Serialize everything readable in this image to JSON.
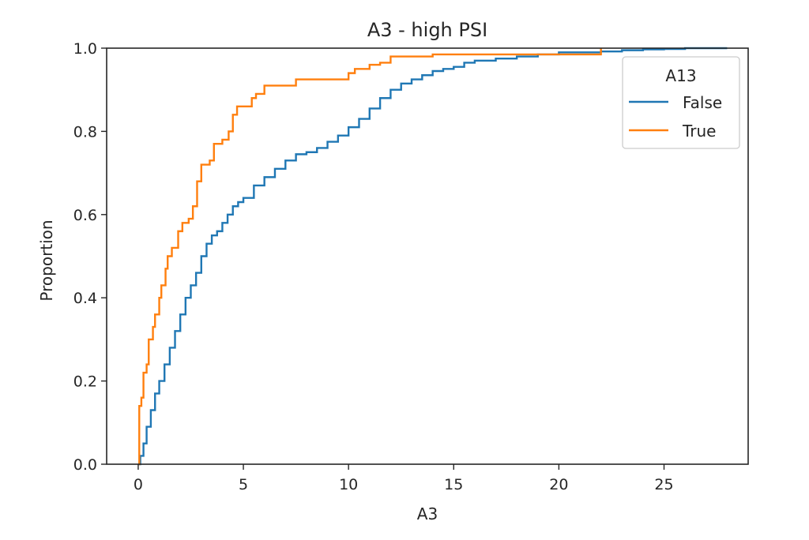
{
  "chart_data": {
    "type": "line",
    "subtype": "ecdf-step",
    "title": "A3 - high PSI",
    "xlabel": "A3",
    "ylabel": "Proportion",
    "xlim": [
      -1.5,
      29
    ],
    "ylim": [
      0,
      1.0
    ],
    "xticks": [
      0,
      5,
      10,
      15,
      20,
      25
    ],
    "yticks": [
      0.0,
      0.2,
      0.4,
      0.6,
      0.8,
      1.0
    ],
    "xtick_labels": [
      "0",
      "5",
      "10",
      "15",
      "20",
      "25"
    ],
    "ytick_labels": [
      "0.0",
      "0.2",
      "0.4",
      "0.6",
      "0.8",
      "1.0"
    ],
    "grid": false,
    "legend": {
      "title": "A13",
      "placement": "top-right",
      "entries": [
        "False",
        "True"
      ]
    },
    "series": [
      {
        "name": "False",
        "color": "#1f77b4",
        "points": [
          [
            0,
            0.0
          ],
          [
            0.1,
            0.02
          ],
          [
            0.25,
            0.05
          ],
          [
            0.4,
            0.09
          ],
          [
            0.6,
            0.13
          ],
          [
            0.8,
            0.17
          ],
          [
            1.0,
            0.2
          ],
          [
            1.25,
            0.24
          ],
          [
            1.5,
            0.28
          ],
          [
            1.75,
            0.32
          ],
          [
            2.0,
            0.36
          ],
          [
            2.25,
            0.4
          ],
          [
            2.5,
            0.43
          ],
          [
            2.75,
            0.46
          ],
          [
            3.0,
            0.5
          ],
          [
            3.25,
            0.53
          ],
          [
            3.5,
            0.55
          ],
          [
            3.75,
            0.56
          ],
          [
            4.0,
            0.58
          ],
          [
            4.25,
            0.6
          ],
          [
            4.5,
            0.62
          ],
          [
            4.75,
            0.63
          ],
          [
            5.0,
            0.64
          ],
          [
            5.5,
            0.67
          ],
          [
            6.0,
            0.69
          ],
          [
            6.5,
            0.71
          ],
          [
            7.0,
            0.73
          ],
          [
            7.5,
            0.745
          ],
          [
            8.0,
            0.75
          ],
          [
            8.5,
            0.76
          ],
          [
            9.0,
            0.775
          ],
          [
            9.5,
            0.79
          ],
          [
            10.0,
            0.81
          ],
          [
            10.5,
            0.83
          ],
          [
            11.0,
            0.855
          ],
          [
            11.5,
            0.88
          ],
          [
            12.0,
            0.9
          ],
          [
            12.5,
            0.915
          ],
          [
            13.0,
            0.925
          ],
          [
            13.5,
            0.935
          ],
          [
            14.0,
            0.945
          ],
          [
            14.5,
            0.95
          ],
          [
            15.0,
            0.955
          ],
          [
            15.5,
            0.965
          ],
          [
            16.0,
            0.97
          ],
          [
            17.0,
            0.975
          ],
          [
            18.0,
            0.98
          ],
          [
            19.0,
            0.985
          ],
          [
            20.0,
            0.99
          ],
          [
            21.0,
            0.99
          ],
          [
            22.0,
            0.992
          ],
          [
            23.0,
            0.995
          ],
          [
            24.0,
            0.997
          ],
          [
            25.0,
            0.998
          ],
          [
            26.0,
            1.0
          ],
          [
            28.0,
            1.0
          ]
        ]
      },
      {
        "name": "True",
        "color": "#ff7f0e",
        "points": [
          [
            0,
            0.0
          ],
          [
            0.05,
            0.14
          ],
          [
            0.15,
            0.16
          ],
          [
            0.25,
            0.22
          ],
          [
            0.4,
            0.24
          ],
          [
            0.5,
            0.3
          ],
          [
            0.7,
            0.33
          ],
          [
            0.8,
            0.36
          ],
          [
            1.0,
            0.4
          ],
          [
            1.1,
            0.43
          ],
          [
            1.3,
            0.47
          ],
          [
            1.4,
            0.5
          ],
          [
            1.6,
            0.52
          ],
          [
            1.9,
            0.56
          ],
          [
            2.1,
            0.58
          ],
          [
            2.4,
            0.59
          ],
          [
            2.6,
            0.62
          ],
          [
            2.8,
            0.68
          ],
          [
            3.0,
            0.72
          ],
          [
            3.4,
            0.73
          ],
          [
            3.6,
            0.77
          ],
          [
            4.0,
            0.78
          ],
          [
            4.3,
            0.8
          ],
          [
            4.5,
            0.84
          ],
          [
            4.7,
            0.86
          ],
          [
            5.4,
            0.88
          ],
          [
            5.6,
            0.89
          ],
          [
            6.0,
            0.91
          ],
          [
            7.5,
            0.925
          ],
          [
            10.0,
            0.94
          ],
          [
            10.3,
            0.95
          ],
          [
            11.0,
            0.96
          ],
          [
            11.5,
            0.965
          ],
          [
            12.0,
            0.98
          ],
          [
            14.0,
            0.985
          ],
          [
            22.0,
            1.0
          ]
        ]
      }
    ]
  }
}
